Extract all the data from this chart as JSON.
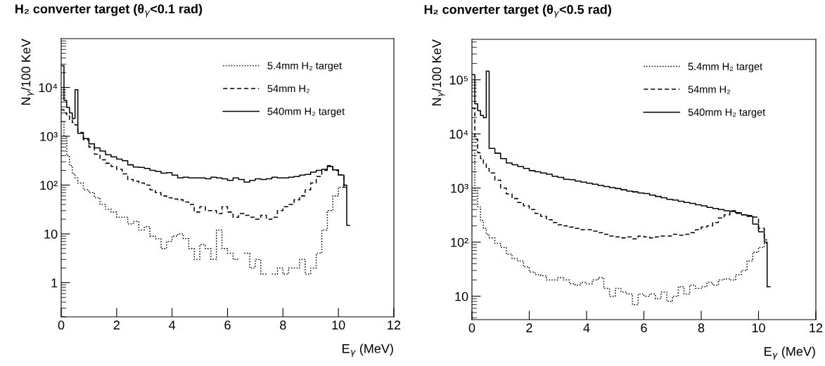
{
  "chart_data": [
    {
      "type": "step",
      "title": "H₂ converter target (θ$_{γ}$<0.1 rad)",
      "xlabel": "E$_{γ}$ (MeV)",
      "ylabel": "N$_{γ}$/100 KeV",
      "series": [
        {
          "name": "5.4mm H₂ target",
          "color": "#000000",
          "line_style": "dotted",
          "x": [
            0,
            0.1,
            0.2,
            0.3,
            0.4,
            0.5,
            0.6,
            0.8,
            1.0,
            1.2,
            1.4,
            1.6,
            1.8,
            2.0,
            2.2,
            2.4,
            2.6,
            2.8,
            3.0,
            3.2,
            3.4,
            3.6,
            3.8,
            4.0,
            4.2,
            4.4,
            4.6,
            4.8,
            5.0,
            5.2,
            5.4,
            5.6,
            5.8,
            6.0,
            6.2,
            6.4,
            6.6,
            6.8,
            7.0,
            7.2,
            7.4,
            7.6,
            7.8,
            8.0,
            8.2,
            8.4,
            8.6,
            8.8,
            9.0,
            9.2,
            9.4,
            9.6,
            9.8,
            10.0,
            10.2,
            10.3
          ],
          "values": [
            2000,
            1000,
            400,
            250,
            170,
            140,
            110,
            80,
            70,
            55,
            40,
            32,
            28,
            22,
            22,
            16,
            18,
            12,
            14,
            9,
            8,
            5,
            7,
            9,
            10,
            8,
            5,
            3,
            6,
            5,
            3,
            12,
            5,
            4,
            3,
            null,
            4,
            2,
            3,
            1.5,
            null,
            1.5,
            2,
            1.5,
            2,
            2,
            3,
            1.5,
            2,
            4,
            12,
            30,
            60,
            90,
            90,
            90
          ]
        },
        {
          "name": "54mm H₂",
          "color": "#000000",
          "line_style": "dashed",
          "x": [
            0,
            0.1,
            0.2,
            0.3,
            0.4,
            0.5,
            0.6,
            0.8,
            1.0,
            1.2,
            1.4,
            1.6,
            1.8,
            2.0,
            2.2,
            2.4,
            2.6,
            2.8,
            3.0,
            3.2,
            3.4,
            3.6,
            3.8,
            4.0,
            4.2,
            4.4,
            4.6,
            4.8,
            5.0,
            5.2,
            5.4,
            5.6,
            5.8,
            6.0,
            6.2,
            6.4,
            6.6,
            6.8,
            7.0,
            7.2,
            7.4,
            7.6,
            7.8,
            8.0,
            8.2,
            8.4,
            8.6,
            8.8,
            9.0,
            9.2,
            9.4,
            9.6,
            9.8,
            10.0,
            10.2,
            10.3
          ],
          "values": [
            3500,
            3000,
            2600,
            2200,
            1900,
            1700,
            1200,
            850,
            600,
            430,
            330,
            280,
            240,
            210,
            170,
            130,
            120,
            110,
            100,
            80,
            70,
            60,
            55,
            52,
            50,
            45,
            40,
            28,
            36,
            30,
            30,
            26,
            36,
            28,
            22,
            26,
            24,
            22,
            20,
            24,
            20,
            22,
            30,
            36,
            40,
            50,
            60,
            80,
            110,
            150,
            200,
            250,
            200,
            160,
            90,
            90
          ]
        },
        {
          "name": "540mm H₂ target",
          "color": "#000000",
          "line_style": "solid",
          "x": [
            0,
            0.1,
            0.2,
            0.3,
            0.4,
            0.5,
            0.6,
            0.8,
            1.0,
            1.2,
            1.4,
            1.6,
            1.8,
            2.0,
            2.2,
            2.4,
            2.6,
            2.8,
            3.0,
            3.2,
            3.4,
            3.6,
            3.8,
            4.0,
            4.2,
            4.4,
            4.6,
            4.8,
            5.0,
            5.2,
            5.4,
            5.6,
            5.8,
            6.0,
            6.2,
            6.4,
            6.6,
            6.8,
            7.0,
            7.2,
            7.4,
            7.6,
            7.8,
            8.0,
            8.2,
            8.4,
            8.6,
            8.8,
            9.0,
            9.2,
            9.4,
            9.6,
            9.8,
            10.0,
            10.2,
            10.3,
            10.4
          ],
          "values": [
            28000,
            5400,
            3900,
            3000,
            2300,
            9000,
            1150,
            900,
            700,
            580,
            500,
            420,
            380,
            340,
            315,
            260,
            235,
            230,
            220,
            200,
            190,
            175,
            180,
            160,
            140,
            145,
            140,
            140,
            140,
            135,
            145,
            140,
            135,
            125,
            140,
            130,
            115,
            125,
            135,
            130,
            135,
            145,
            140,
            140,
            145,
            150,
            160,
            165,
            185,
            200,
            210,
            240,
            205,
            160,
            100,
            15,
            15
          ]
        }
      ],
      "xlim": [
        0,
        12
      ],
      "xticks": [
        0,
        2,
        4,
        6,
        8,
        10,
        12
      ],
      "log": "y",
      "ylim": [
        0.2,
        100000
      ],
      "yticks": [
        1,
        10,
        {
          "value": 100,
          "label": "10²"
        },
        {
          "value": 1000,
          "label": "10³"
        },
        {
          "value": 10000,
          "label": "10⁴"
        }
      ],
      "legend": "top right",
      "grid": false
    },
    {
      "type": "step",
      "title": "H₂ converter target (θ$_{γ}$<0.5 rad)",
      "xlabel": "E$_{γ}$ (MeV)",
      "ylabel": "N$_{γ}$/100 KeV",
      "series": [
        {
          "name": "5.4mm H₂ target",
          "color": "#000000",
          "line_style": "dotted",
          "x": [
            0,
            0.1,
            0.2,
            0.3,
            0.4,
            0.5,
            0.6,
            0.8,
            1.0,
            1.2,
            1.4,
            1.6,
            1.8,
            2.0,
            2.2,
            2.4,
            2.6,
            2.8,
            3.0,
            3.2,
            3.4,
            3.6,
            3.8,
            4.0,
            4.2,
            4.4,
            4.6,
            4.8,
            5.0,
            5.2,
            5.4,
            5.6,
            5.8,
            6.0,
            6.2,
            6.4,
            6.6,
            6.8,
            7.0,
            7.2,
            7.4,
            7.6,
            7.8,
            8.0,
            8.2,
            8.4,
            8.6,
            8.8,
            9.0,
            9.2,
            9.4,
            9.6,
            9.8,
            10.0,
            10.2,
            10.3
          ],
          "values": [
            5000,
            900,
            450,
            250,
            180,
            140,
            120,
            95,
            80,
            60,
            50,
            45,
            35,
            28,
            25,
            24,
            20,
            20,
            22,
            20,
            17,
            16,
            18,
            17,
            20,
            22,
            14,
            10,
            14,
            12,
            11,
            7,
            11,
            10,
            11,
            9,
            12,
            8,
            10,
            15,
            11,
            16,
            14,
            15,
            18,
            16,
            20,
            21,
            20,
            25,
            30,
            45,
            65,
            80,
            95,
            95
          ]
        },
        {
          "name": "54mm H₂",
          "color": "#000000",
          "line_style": "dashed",
          "x": [
            0,
            0.1,
            0.2,
            0.3,
            0.4,
            0.5,
            0.6,
            0.8,
            1.0,
            1.2,
            1.4,
            1.6,
            1.8,
            2.0,
            2.2,
            2.4,
            2.6,
            2.8,
            3.0,
            3.2,
            3.4,
            3.6,
            3.8,
            4.0,
            4.2,
            4.4,
            4.6,
            4.8,
            5.0,
            5.2,
            5.4,
            5.6,
            5.8,
            6.0,
            6.2,
            6.4,
            6.6,
            6.8,
            7.0,
            7.2,
            7.4,
            7.6,
            7.8,
            8.0,
            8.2,
            8.4,
            8.6,
            8.8,
            9.0,
            9.2,
            9.4,
            9.6,
            9.8,
            10.0,
            10.2,
            10.3
          ],
          "values": [
            30000,
            8000,
            4500,
            3500,
            2800,
            2300,
            1900,
            1400,
            1000,
            780,
            640,
            540,
            470,
            400,
            340,
            300,
            260,
            230,
            210,
            200,
            190,
            180,
            170,
            170,
            160,
            150,
            140,
            130,
            125,
            120,
            125,
            115,
            130,
            125,
            120,
            125,
            130,
            130,
            140,
            135,
            140,
            150,
            170,
            190,
            200,
            230,
            280,
            320,
            380,
            340,
            320,
            310,
            290,
            180,
            110,
            110
          ]
        },
        {
          "name": "540mm H₂ target",
          "color": "#000000",
          "line_style": "solid",
          "x": [
            0,
            0.1,
            0.2,
            0.3,
            0.4,
            0.5,
            0.6,
            0.8,
            1.0,
            1.2,
            1.4,
            1.6,
            1.8,
            2.0,
            2.2,
            2.4,
            2.6,
            2.8,
            3.0,
            3.2,
            3.4,
            3.6,
            3.8,
            4.0,
            4.2,
            4.4,
            4.6,
            4.8,
            5.0,
            5.2,
            5.4,
            5.6,
            5.8,
            6.0,
            6.2,
            6.4,
            6.6,
            6.8,
            7.0,
            7.2,
            7.4,
            7.6,
            7.8,
            8.0,
            8.2,
            8.4,
            8.6,
            8.8,
            9.0,
            9.2,
            9.4,
            9.6,
            9.8,
            10.0,
            10.2,
            10.3,
            10.4
          ],
          "values": [
            125000,
            36000,
            27000,
            22000,
            20000,
            145000,
            5400,
            4400,
            3500,
            2900,
            2700,
            2500,
            2300,
            2100,
            2000,
            1900,
            1800,
            1650,
            1570,
            1450,
            1430,
            1350,
            1290,
            1230,
            1180,
            1120,
            1070,
            1020,
            980,
            930,
            880,
            850,
            810,
            790,
            740,
            700,
            660,
            620,
            600,
            570,
            540,
            520,
            490,
            470,
            440,
            420,
            400,
            380,
            370,
            350,
            320,
            300,
            215,
            155,
            100,
            15,
            15
          ]
        }
      ],
      "xlim": [
        0,
        12
      ],
      "xticks": [
        0,
        2,
        4,
        6,
        8,
        10,
        12
      ],
      "log": "y",
      "ylim": [
        3.7,
        560000
      ],
      "yticks": [
        10,
        {
          "value": 100,
          "label": "10²"
        },
        {
          "value": 1000,
          "label": "10³"
        },
        {
          "value": 10000,
          "label": "10⁴"
        },
        {
          "value": 100000,
          "label": "10⁵"
        }
      ],
      "legend": "top right",
      "grid": false
    }
  ]
}
